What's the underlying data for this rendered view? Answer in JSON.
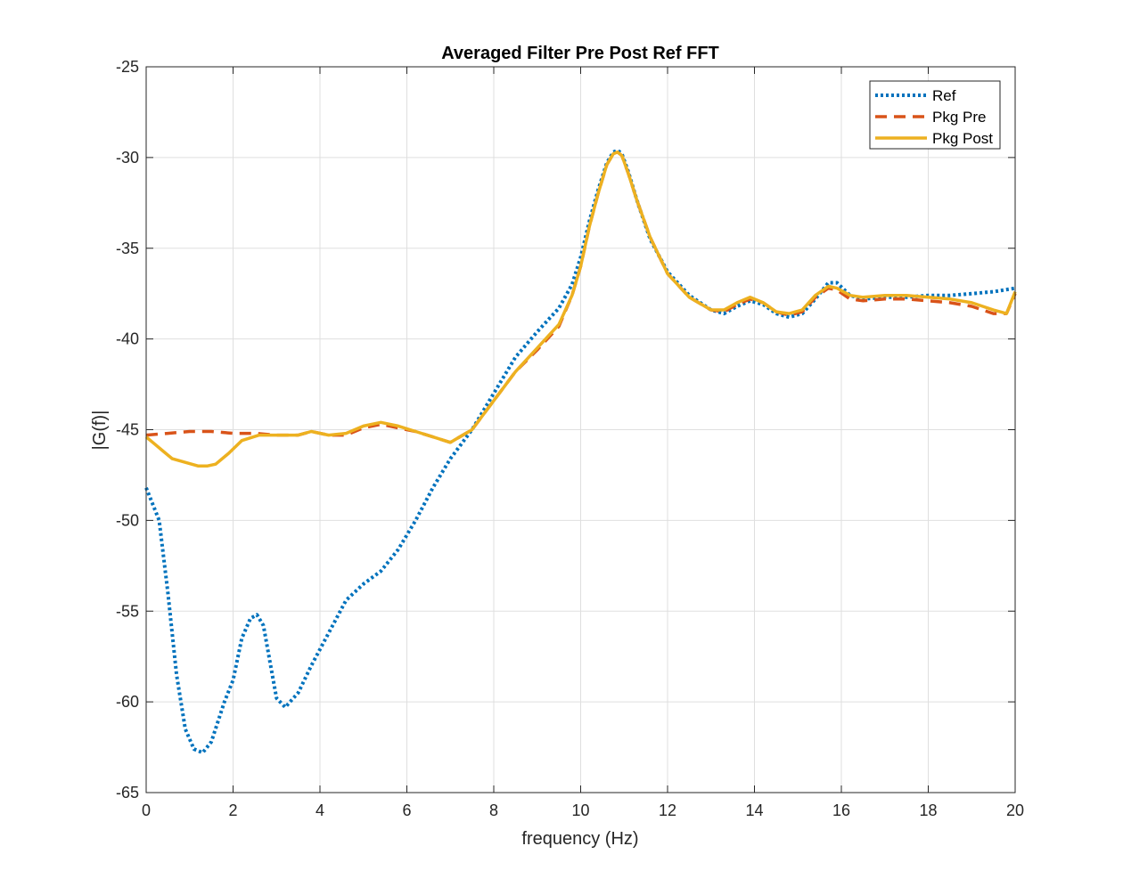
{
  "chart_data": {
    "type": "line",
    "title": "Averaged Filter Pre Post Ref FFT",
    "xlabel": "frequency (Hz)",
    "ylabel": "|G(f)|",
    "xlim": [
      0,
      20
    ],
    "ylim": [
      -65,
      -25
    ],
    "xticks": [
      0,
      2,
      4,
      6,
      8,
      10,
      12,
      14,
      16,
      18,
      20
    ],
    "yticks": [
      -65,
      -60,
      -55,
      -50,
      -45,
      -40,
      -35,
      -30,
      -25
    ],
    "grid": true,
    "legend_position": "top-right",
    "series": [
      {
        "name": "Ref",
        "color": "#0072BD",
        "style": "dotted",
        "x": [
          0,
          0.3,
          0.5,
          0.7,
          0.9,
          1.1,
          1.3,
          1.5,
          1.8,
          2.0,
          2.2,
          2.4,
          2.55,
          2.7,
          2.85,
          3.0,
          3.2,
          3.5,
          3.8,
          4.2,
          4.6,
          5.0,
          5.4,
          5.8,
          6.2,
          6.6,
          7.0,
          7.5,
          8.0,
          8.5,
          9.0,
          9.5,
          9.8,
          10.0,
          10.2,
          10.4,
          10.6,
          10.75,
          10.85,
          10.95,
          11.1,
          11.3,
          11.6,
          12.0,
          12.5,
          13.0,
          13.3,
          13.6,
          13.9,
          14.2,
          14.5,
          14.8,
          15.1,
          15.4,
          15.7,
          15.9,
          16.2,
          16.5,
          17.0,
          17.5,
          18.0,
          18.5,
          19.0,
          19.5,
          20.0
        ],
        "values": [
          -48.2,
          -50.0,
          -54.0,
          -58.5,
          -61.5,
          -62.6,
          -62.8,
          -62.2,
          -60.0,
          -58.8,
          -56.5,
          -55.4,
          -55.2,
          -55.8,
          -57.8,
          -59.8,
          -60.3,
          -59.5,
          -58.0,
          -56.2,
          -54.4,
          -53.5,
          -52.8,
          -51.6,
          -50.0,
          -48.2,
          -46.6,
          -45.0,
          -43.0,
          -41.0,
          -39.6,
          -38.3,
          -37.0,
          -35.5,
          -33.5,
          -31.8,
          -30.3,
          -29.7,
          -29.6,
          -29.8,
          -30.8,
          -32.4,
          -34.5,
          -36.3,
          -37.6,
          -38.4,
          -38.6,
          -38.2,
          -37.9,
          -38.1,
          -38.6,
          -38.8,
          -38.6,
          -37.8,
          -36.9,
          -36.9,
          -37.6,
          -37.8,
          -37.7,
          -37.7,
          -37.6,
          -37.6,
          -37.5,
          -37.4,
          -37.2
        ]
      },
      {
        "name": "Pkg Pre",
        "color": "#D95319",
        "style": "dashed",
        "x": [
          0,
          0.5,
          1.0,
          1.5,
          2.0,
          2.5,
          3.0,
          3.5,
          3.8,
          4.2,
          4.6,
          5.0,
          5.4,
          5.8,
          6.2,
          6.6,
          7.0,
          7.5,
          8.0,
          8.5,
          9.0,
          9.5,
          9.8,
          10.0,
          10.2,
          10.4,
          10.6,
          10.75,
          10.85,
          10.95,
          11.1,
          11.3,
          11.6,
          12.0,
          12.5,
          13.0,
          13.3,
          13.6,
          13.9,
          14.2,
          14.5,
          14.8,
          15.1,
          15.4,
          15.7,
          15.9,
          16.2,
          16.5,
          17.0,
          17.5,
          18.0,
          18.5,
          19.0,
          19.5,
          19.8,
          20.0
        ],
        "values": [
          -45.3,
          -45.2,
          -45.1,
          -45.1,
          -45.2,
          -45.2,
          -45.3,
          -45.3,
          -45.1,
          -45.3,
          -45.3,
          -44.9,
          -44.7,
          -44.9,
          -45.1,
          -45.4,
          -45.7,
          -45.0,
          -43.4,
          -41.8,
          -40.6,
          -39.3,
          -37.6,
          -36.0,
          -33.8,
          -32.0,
          -30.4,
          -29.8,
          -29.7,
          -29.9,
          -30.9,
          -32.4,
          -34.4,
          -36.4,
          -37.7,
          -38.4,
          -38.5,
          -38.1,
          -37.8,
          -38.0,
          -38.5,
          -38.7,
          -38.5,
          -37.7,
          -37.2,
          -37.3,
          -37.8,
          -37.9,
          -37.8,
          -37.8,
          -37.9,
          -38.0,
          -38.2,
          -38.6,
          -38.6,
          -37.5
        ]
      },
      {
        "name": "Pkg Post",
        "color": "#EDB120",
        "style": "solid",
        "x": [
          0,
          0.2,
          0.4,
          0.6,
          0.9,
          1.2,
          1.4,
          1.6,
          1.9,
          2.2,
          2.6,
          3.0,
          3.5,
          3.8,
          4.2,
          4.6,
          5.0,
          5.4,
          5.8,
          6.2,
          6.6,
          7.0,
          7.5,
          8.0,
          8.5,
          9.0,
          9.5,
          9.8,
          10.0,
          10.2,
          10.4,
          10.6,
          10.75,
          10.85,
          10.95,
          11.1,
          11.3,
          11.6,
          12.0,
          12.5,
          13.0,
          13.3,
          13.6,
          13.9,
          14.2,
          14.5,
          14.8,
          15.1,
          15.4,
          15.7,
          15.9,
          16.2,
          16.5,
          17.0,
          17.5,
          18.0,
          18.5,
          19.0,
          19.5,
          19.8,
          20.0
        ],
        "values": [
          -45.4,
          -45.8,
          -46.2,
          -46.6,
          -46.8,
          -47.0,
          -47.0,
          -46.9,
          -46.3,
          -45.6,
          -45.3,
          -45.3,
          -45.3,
          -45.1,
          -45.3,
          -45.2,
          -44.8,
          -44.6,
          -44.8,
          -45.1,
          -45.4,
          -45.7,
          -45.0,
          -43.4,
          -41.8,
          -40.5,
          -39.2,
          -37.6,
          -36.0,
          -33.8,
          -32.0,
          -30.4,
          -29.8,
          -29.7,
          -29.9,
          -30.9,
          -32.4,
          -34.4,
          -36.4,
          -37.7,
          -38.4,
          -38.4,
          -38.0,
          -37.7,
          -38.0,
          -38.5,
          -38.6,
          -38.4,
          -37.6,
          -37.1,
          -37.2,
          -37.6,
          -37.7,
          -37.6,
          -37.6,
          -37.7,
          -37.8,
          -38.0,
          -38.4,
          -38.6,
          -37.4
        ]
      }
    ]
  }
}
